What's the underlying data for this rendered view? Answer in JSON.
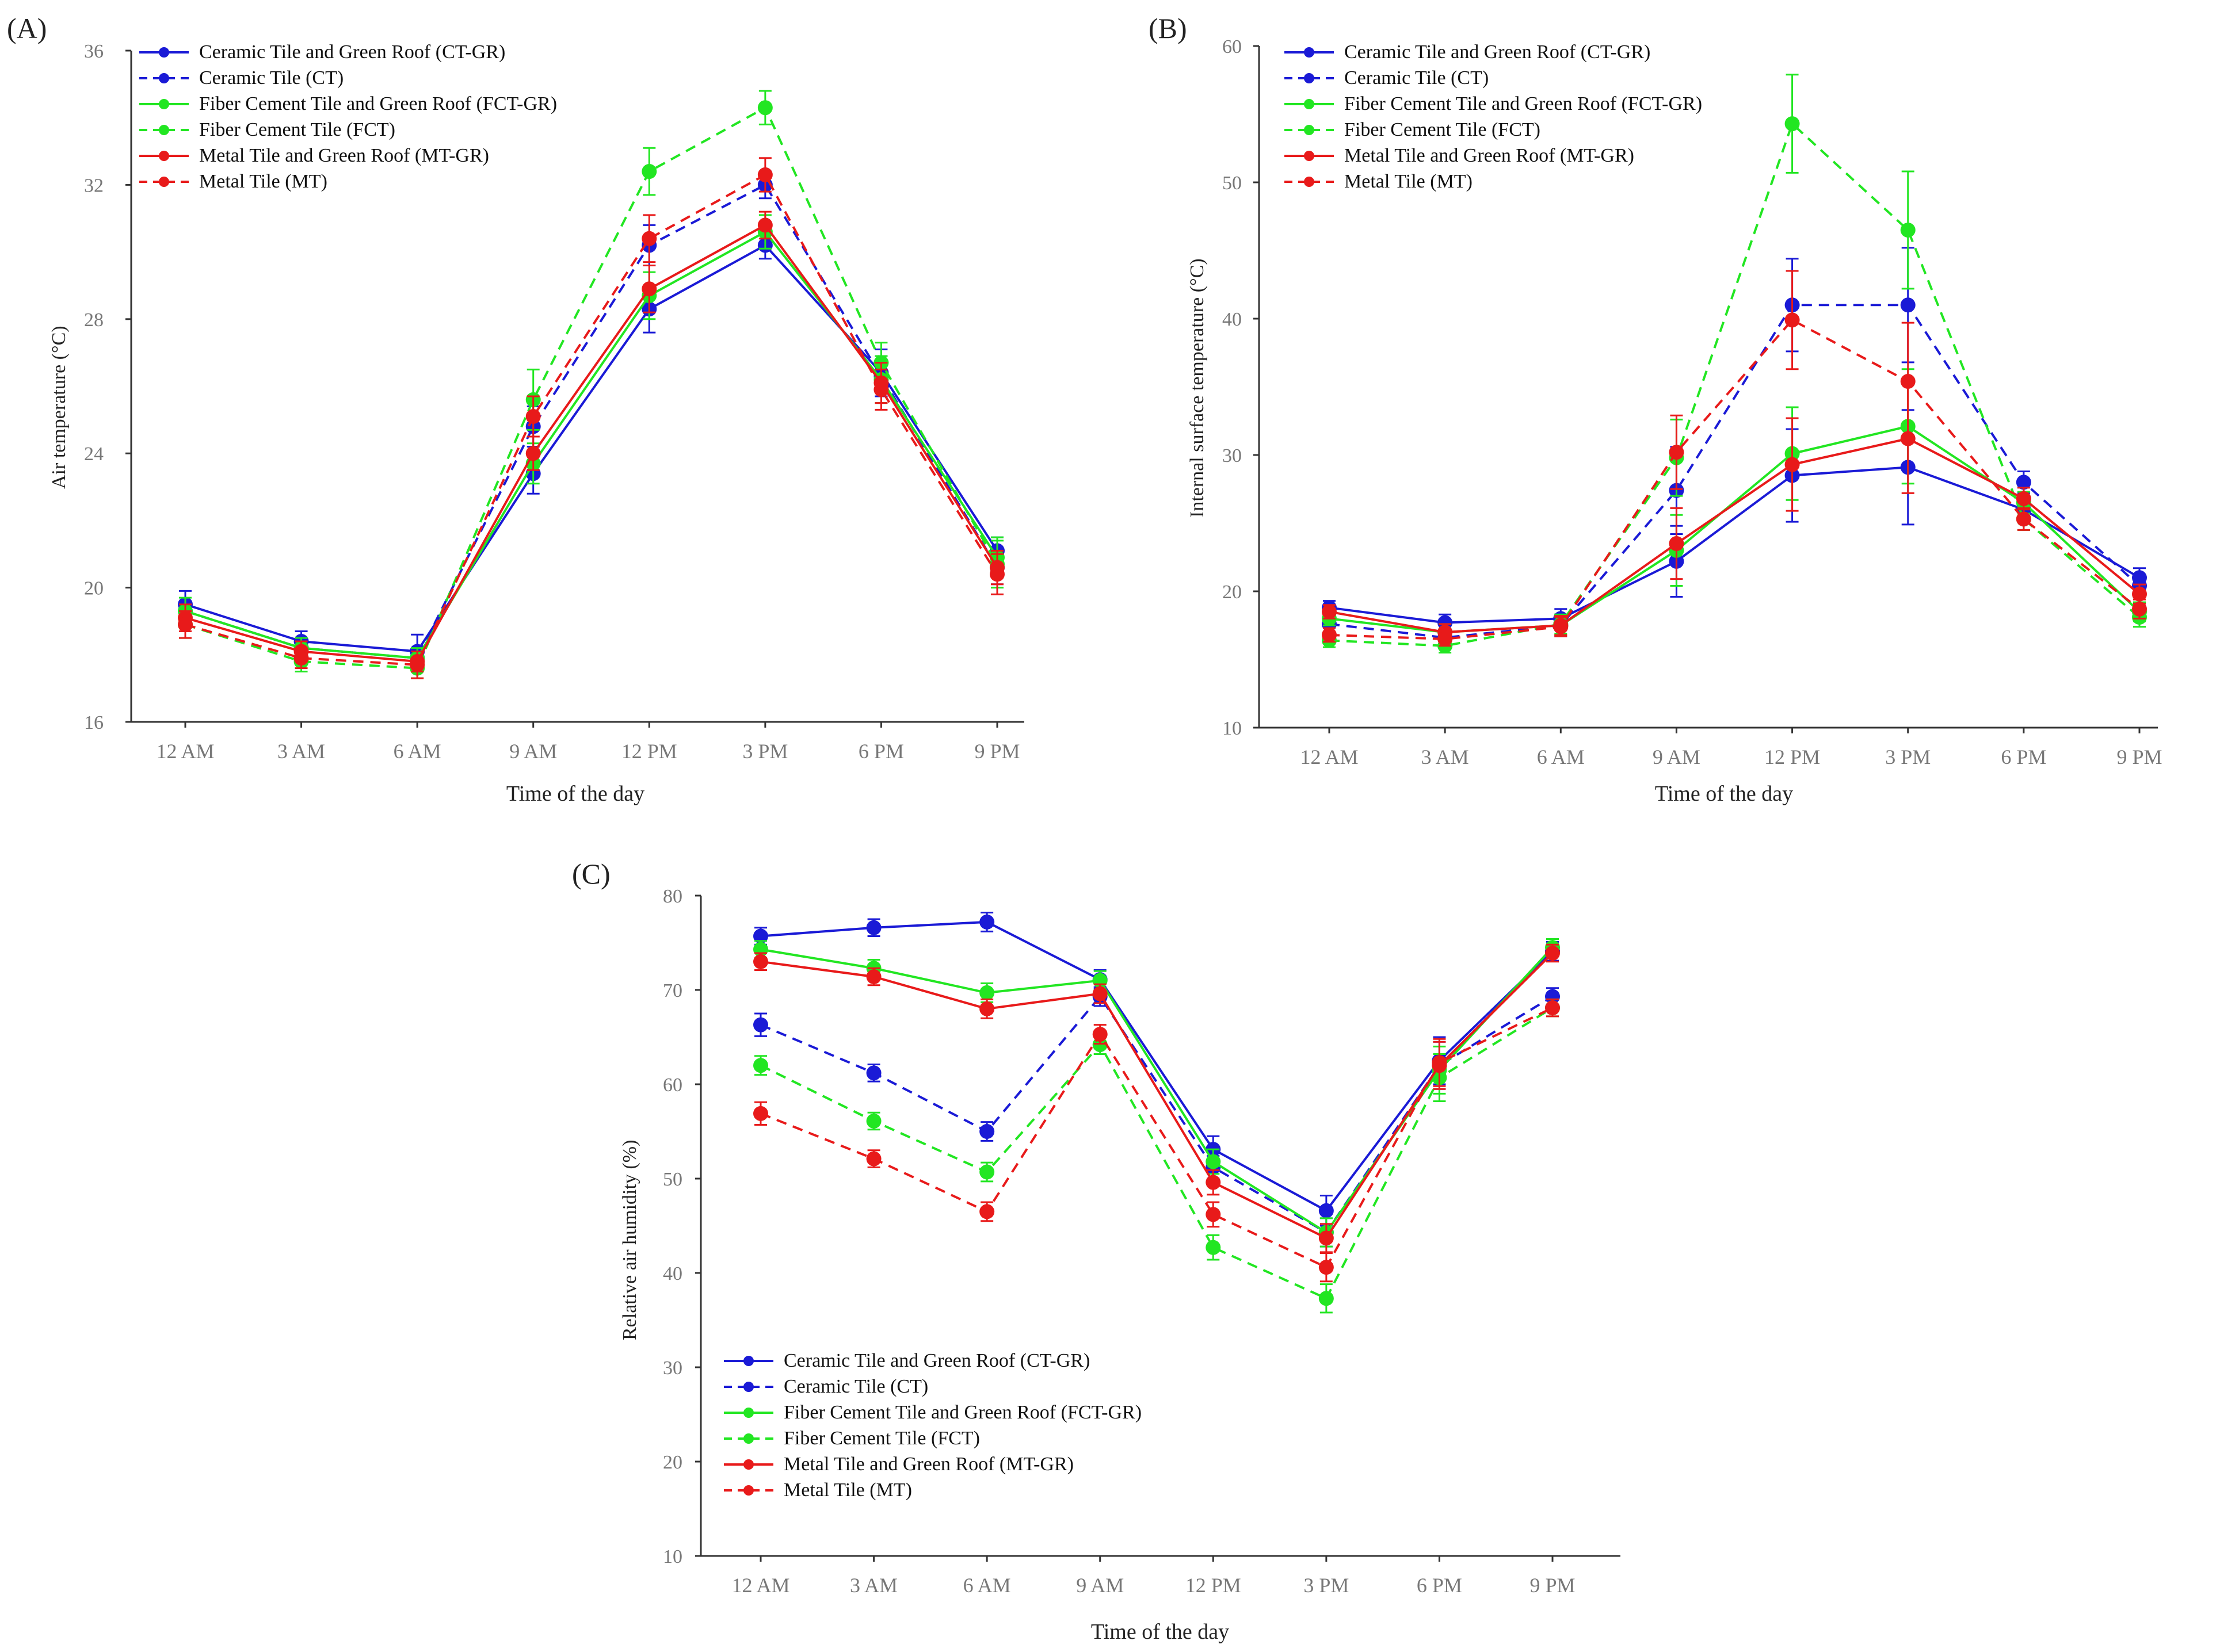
{
  "chart_data": [
    {
      "id": "A",
      "type": "line",
      "panel_label": "(A)",
      "xlabel": "Time of  the day",
      "ylabel": "Air temperature (°C)",
      "categories": [
        "12 AM",
        "3 AM",
        "6 AM",
        "9 AM",
        "12 PM",
        "3 PM",
        "6 PM",
        "9 PM"
      ],
      "ylim": [
        16,
        36
      ],
      "yticks": [
        "16",
        "20",
        "24",
        "28",
        "32",
        "36"
      ],
      "legend_position": "top-left",
      "series": [
        {
          "name": "Ceramic Tile and Green Roof (CT-GR)",
          "color": "#1a1ad6",
          "dash": false,
          "values": [
            19.5,
            18.4,
            18.1,
            23.4,
            28.3,
            30.2,
            26.4,
            21.1
          ],
          "errors": [
            0.4,
            0.3,
            0.5,
            0.6,
            0.7,
            0.4,
            0.7,
            0.4
          ]
        },
        {
          "name": "Ceramic Tile (CT)",
          "color": "#1a1ad6",
          "dash": true,
          "values": [
            19.3,
            18.2,
            17.9,
            24.8,
            30.2,
            32.0,
            26.3,
            20.6
          ],
          "errors": [
            0.3,
            0.3,
            0.3,
            0.6,
            0.6,
            0.4,
            0.6,
            0.5
          ]
        },
        {
          "name": "Fiber Cement Tile and Green Roof (FCT-GR)",
          "color": "#22e622",
          "dash": false,
          "values": [
            19.3,
            18.2,
            17.9,
            23.7,
            28.7,
            30.6,
            26.2,
            20.9
          ],
          "errors": [
            0.4,
            0.3,
            0.3,
            0.6,
            0.7,
            0.5,
            0.7,
            0.6
          ]
        },
        {
          "name": "Fiber Cement Tile (FCT)",
          "color": "#22e622",
          "dash": true,
          "values": [
            18.9,
            17.8,
            17.6,
            25.6,
            32.4,
            34.3,
            26.7,
            20.7
          ],
          "errors": [
            0.4,
            0.3,
            0.3,
            0.9,
            0.7,
            0.5,
            0.6,
            0.7
          ]
        },
        {
          "name": "Metal Tile and Green Roof (MT-GR)",
          "color": "#e81a1a",
          "dash": false,
          "values": [
            19.1,
            18.1,
            17.8,
            24.0,
            28.9,
            30.8,
            26.1,
            20.6
          ],
          "errors": [
            0.4,
            0.3,
            0.3,
            0.5,
            0.7,
            0.4,
            0.6,
            0.5
          ]
        },
        {
          "name": "Metal Tile (MT)",
          "color": "#e81a1a",
          "dash": true,
          "values": [
            18.9,
            17.9,
            17.7,
            25.1,
            30.4,
            32.3,
            25.9,
            20.4
          ],
          "errors": [
            0.4,
            0.3,
            0.4,
            0.6,
            0.7,
            0.5,
            0.6,
            0.6
          ]
        }
      ]
    },
    {
      "id": "B",
      "type": "line",
      "panel_label": "(B)",
      "xlabel": "Time of  the day",
      "ylabel": "Internal surface temperature (°C)",
      "categories": [
        "12 AM",
        "3 AM",
        "6 AM",
        "9 AM",
        "12 PM",
        "3 PM",
        "6 PM",
        "9 PM"
      ],
      "ylim": [
        10,
        60
      ],
      "yticks": [
        "10",
        "20",
        "30",
        "40",
        "50",
        "60"
      ],
      "legend_position": "top-left",
      "series": [
        {
          "name": "Ceramic Tile and Green Roof (CT-GR)",
          "color": "#1a1ad6",
          "dash": false,
          "values": [
            18.8,
            17.7,
            18.0,
            22.2,
            28.5,
            29.1,
            26.0,
            21.0
          ],
          "errors": [
            0.5,
            0.6,
            0.7,
            2.6,
            3.4,
            4.2,
            0.8,
            0.7
          ]
        },
        {
          "name": "Ceramic Tile (CT)",
          "color": "#1a1ad6",
          "dash": true,
          "values": [
            17.6,
            16.6,
            17.5,
            27.4,
            41.0,
            41.0,
            28.0,
            20.4
          ],
          "errors": [
            0.6,
            0.6,
            0.8,
            3.2,
            3.4,
            4.2,
            0.8,
            0.7
          ]
        },
        {
          "name": "Fiber Cement Tile and Green Roof (FCT-GR)",
          "color": "#22e622",
          "dash": false,
          "values": [
            18.0,
            17.0,
            17.5,
            23.0,
            30.1,
            32.1,
            26.5,
            18.5
          ],
          "errors": [
            0.5,
            0.6,
            0.7,
            2.6,
            3.4,
            4.2,
            0.8,
            0.7
          ]
        },
        {
          "name": "Fiber Cement Tile (FCT)",
          "color": "#22e622",
          "dash": true,
          "values": [
            16.4,
            16.0,
            17.6,
            29.8,
            54.3,
            46.5,
            25.3,
            18.1
          ],
          "errors": [
            0.5,
            0.5,
            0.7,
            2.8,
            3.6,
            4.3,
            0.8,
            0.7
          ]
        },
        {
          "name": "Metal Tile and Green Roof (MT-GR)",
          "color": "#e81a1a",
          "dash": false,
          "values": [
            18.5,
            17.0,
            17.5,
            23.5,
            29.3,
            31.2,
            26.8,
            19.8
          ],
          "errors": [
            0.5,
            0.6,
            0.7,
            2.6,
            3.4,
            4.0,
            0.8,
            0.7
          ]
        },
        {
          "name": "Metal Tile (MT)",
          "color": "#e81a1a",
          "dash": true,
          "values": [
            16.8,
            16.5,
            17.4,
            30.2,
            39.9,
            35.4,
            25.3,
            18.7
          ],
          "errors": [
            0.5,
            0.5,
            0.7,
            2.7,
            3.6,
            4.3,
            0.8,
            0.7
          ]
        }
      ]
    },
    {
      "id": "C",
      "type": "line",
      "panel_label": "(C)",
      "xlabel": "Time of  the day",
      "ylabel": "Relative air humidity (%)",
      "categories": [
        "12 AM",
        "3 AM",
        "6 AM",
        "9 AM",
        "12 PM",
        "3 PM",
        "6 PM",
        "9 PM"
      ],
      "ylim": [
        10,
        80
      ],
      "yticks": [
        "10",
        "20",
        "30",
        "40",
        "50",
        "60",
        "70",
        "80"
      ],
      "legend_position": "bottom-left",
      "series": [
        {
          "name": "Ceramic Tile and Green Roof (CT-GR)",
          "color": "#1a1ad6",
          "dash": false,
          "values": [
            75.7,
            76.6,
            77.2,
            71.1,
            53.1,
            46.6,
            62.5,
            74.1
          ],
          "errors": [
            0.9,
            0.9,
            1.0,
            1.0,
            1.4,
            1.6,
            2.5,
            1.0
          ]
        },
        {
          "name": "Ceramic Tile (CT)",
          "color": "#1a1ad6",
          "dash": true,
          "values": [
            66.3,
            61.2,
            55.0,
            69.3,
            51.2,
            44.3,
            62.0,
            69.3
          ],
          "errors": [
            1.2,
            0.9,
            1.0,
            1.0,
            1.2,
            1.5,
            2.5,
            0.9
          ]
        },
        {
          "name": "Fiber Cement Tile and Green Roof (FCT-GR)",
          "color": "#22e622",
          "dash": false,
          "values": [
            74.3,
            72.3,
            69.7,
            71.0,
            51.8,
            44.3,
            61.5,
            74.5
          ],
          "errors": [
            0.9,
            0.9,
            1.0,
            1.0,
            1.3,
            1.5,
            2.5,
            0.9
          ]
        },
        {
          "name": "Fiber Cement Tile (FCT)",
          "color": "#22e622",
          "dash": true,
          "values": [
            62.0,
            56.1,
            50.7,
            64.2,
            42.7,
            37.3,
            60.7,
            68.1
          ],
          "errors": [
            1.0,
            0.9,
            1.0,
            1.0,
            1.3,
            1.5,
            2.5,
            0.9
          ]
        },
        {
          "name": "Metal Tile and Green Roof (MT-GR)",
          "color": "#e81a1a",
          "dash": false,
          "values": [
            73.0,
            71.4,
            68.0,
            69.6,
            49.6,
            43.7,
            62.0,
            73.9
          ],
          "errors": [
            0.9,
            0.9,
            1.0,
            1.0,
            1.3,
            1.5,
            2.5,
            0.9
          ]
        },
        {
          "name": "Metal Tile (MT)",
          "color": "#e81a1a",
          "dash": true,
          "values": [
            56.9,
            52.1,
            46.5,
            65.3,
            46.2,
            40.6,
            62.3,
            68.1
          ],
          "errors": [
            1.2,
            0.9,
            1.0,
            1.0,
            1.3,
            1.5,
            2.5,
            0.9
          ]
        }
      ]
    }
  ]
}
